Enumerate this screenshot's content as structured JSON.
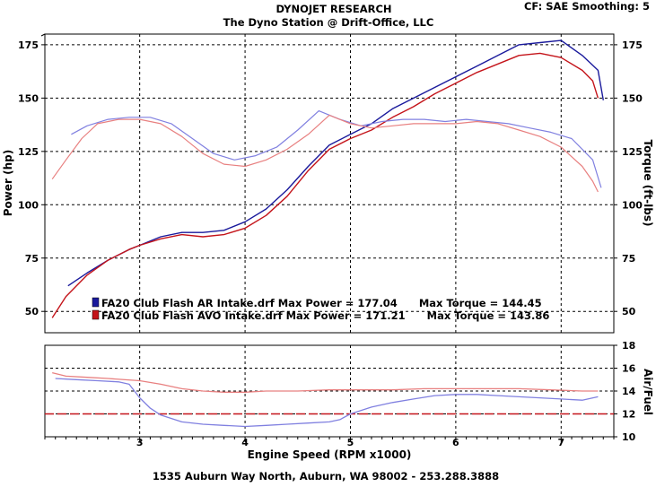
{
  "header": {
    "title": "DYNOJET RESEARCH",
    "subtitle": "The Dyno Station @ Drift-Office, LLC",
    "settings": "CF: SAE  Smoothing: 5"
  },
  "footer": {
    "address": "1535 Auburn Way North, Auburn, WA 98002 - 253.288.3888"
  },
  "colors": {
    "background": "#ffffff",
    "grid": "#000000",
    "series_ar": "#1a1a9c",
    "series_avo": "#c4141a",
    "series_ar_light": "#8080e0",
    "series_avo_light": "#e88080",
    "afr_ref": "#c4141a"
  },
  "legend": [
    {
      "text": "FA20 Club Flash AR Intake.drf Max Power = 177.04      Max Torque = 144.45",
      "color": "#1a1a9c"
    },
    {
      "text": "FA20 Club Flash AVO Intake.drf Max Power = 171.21      Max Torque = 143.86",
      "color": "#c4141a"
    }
  ],
  "chart_data": [
    {
      "type": "line",
      "xlabel": "Engine Speed (RPM x1000)",
      "ylabel": "Power (hp)",
      "y2label": "Torque (ft-lbs)",
      "xlim": [
        2.1,
        7.5
      ],
      "ylim": [
        40,
        180
      ],
      "y2lim": [
        40,
        180
      ],
      "yticks": [
        50,
        75,
        100,
        125,
        150,
        175
      ],
      "y2ticks": [
        50,
        75,
        100,
        125,
        150,
        175
      ],
      "vgrid": [
        3,
        4,
        5,
        6,
        7
      ],
      "grid": true,
      "legend_position": "bottom-left",
      "series": [
        {
          "name": "FA20 Club Flash AR Intake.drf",
          "quantity": "Power",
          "color_key": "series_ar",
          "points": [
            [
              2.32,
              62
            ],
            [
              2.5,
              68
            ],
            [
              2.7,
              74
            ],
            [
              2.9,
              79
            ],
            [
              3.0,
              81
            ],
            [
              3.2,
              85
            ],
            [
              3.4,
              87
            ],
            [
              3.6,
              87
            ],
            [
              3.8,
              88
            ],
            [
              4.0,
              92
            ],
            [
              4.2,
              98
            ],
            [
              4.4,
              107
            ],
            [
              4.6,
              118
            ],
            [
              4.8,
              128
            ],
            [
              5.0,
              133
            ],
            [
              5.2,
              138
            ],
            [
              5.4,
              145
            ],
            [
              5.6,
              150
            ],
            [
              5.8,
              155
            ],
            [
              6.0,
              160
            ],
            [
              6.2,
              165
            ],
            [
              6.4,
              170
            ],
            [
              6.6,
              175
            ],
            [
              6.8,
              176
            ],
            [
              7.0,
              177
            ],
            [
              7.2,
              170
            ],
            [
              7.35,
              163
            ],
            [
              7.4,
              149
            ]
          ]
        },
        {
          "name": "FA20 Club Flash AVO Intake.drf",
          "quantity": "Power",
          "color_key": "series_avo",
          "points": [
            [
              2.17,
              47
            ],
            [
              2.3,
              57
            ],
            [
              2.5,
              67
            ],
            [
              2.7,
              74
            ],
            [
              2.9,
              79
            ],
            [
              3.0,
              81
            ],
            [
              3.2,
              84
            ],
            [
              3.4,
              86
            ],
            [
              3.6,
              85
            ],
            [
              3.8,
              86
            ],
            [
              4.0,
              89
            ],
            [
              4.2,
              95
            ],
            [
              4.4,
              104
            ],
            [
              4.6,
              116
            ],
            [
              4.8,
              126
            ],
            [
              5.0,
              131
            ],
            [
              5.2,
              135
            ],
            [
              5.4,
              141
            ],
            [
              5.6,
              146
            ],
            [
              5.8,
              152
            ],
            [
              6.0,
              157
            ],
            [
              6.2,
              162
            ],
            [
              6.4,
              166
            ],
            [
              6.6,
              170
            ],
            [
              6.8,
              171
            ],
            [
              7.0,
              169
            ],
            [
              7.2,
              163
            ],
            [
              7.3,
              158
            ],
            [
              7.35,
              150
            ]
          ]
        },
        {
          "name": "FA20 Club Flash AR Intake.drf",
          "quantity": "Torque",
          "color_key": "series_ar_light",
          "points": [
            [
              2.35,
              133
            ],
            [
              2.5,
              137
            ],
            [
              2.7,
              140
            ],
            [
              2.9,
              141
            ],
            [
              3.1,
              141
            ],
            [
              3.3,
              138
            ],
            [
              3.5,
              131
            ],
            [
              3.7,
              124
            ],
            [
              3.9,
              121
            ],
            [
              4.1,
              123
            ],
            [
              4.3,
              127
            ],
            [
              4.5,
              135
            ],
            [
              4.7,
              144
            ],
            [
              4.9,
              140
            ],
            [
              5.1,
              137
            ],
            [
              5.3,
              139
            ],
            [
              5.5,
              140
            ],
            [
              5.7,
              140
            ],
            [
              5.9,
              139
            ],
            [
              6.1,
              140
            ],
            [
              6.3,
              139
            ],
            [
              6.5,
              138
            ],
            [
              6.7,
              136
            ],
            [
              6.9,
              134
            ],
            [
              7.1,
              131
            ],
            [
              7.3,
              121
            ],
            [
              7.38,
              108
            ]
          ]
        },
        {
          "name": "FA20 Club Flash AVO Intake.drf",
          "quantity": "Torque",
          "color_key": "series_avo_light",
          "points": [
            [
              2.17,
              112
            ],
            [
              2.3,
              121
            ],
            [
              2.45,
              131
            ],
            [
              2.6,
              138
            ],
            [
              2.8,
              140
            ],
            [
              3.0,
              140
            ],
            [
              3.2,
              138
            ],
            [
              3.4,
              132
            ],
            [
              3.6,
              124
            ],
            [
              3.8,
              119
            ],
            [
              4.0,
              118
            ],
            [
              4.2,
              121
            ],
            [
              4.4,
              126
            ],
            [
              4.6,
              133
            ],
            [
              4.8,
              142
            ],
            [
              5.0,
              138
            ],
            [
              5.2,
              136
            ],
            [
              5.4,
              137
            ],
            [
              5.6,
              138
            ],
            [
              5.8,
              138
            ],
            [
              6.0,
              138
            ],
            [
              6.2,
              139
            ],
            [
              6.4,
              138
            ],
            [
              6.6,
              135
            ],
            [
              6.8,
              132
            ],
            [
              7.0,
              127
            ],
            [
              7.2,
              118
            ],
            [
              7.3,
              111
            ],
            [
              7.35,
              106
            ]
          ]
        }
      ]
    },
    {
      "type": "line",
      "ylabel": "Air/Fuel",
      "xlim": [
        2.1,
        7.5
      ],
      "ylim": [
        10,
        18
      ],
      "yticks": [
        10,
        12,
        14,
        16,
        18
      ],
      "vgrid": [
        3,
        4,
        5,
        6,
        7
      ],
      "reference_line": 12,
      "grid": true,
      "series": [
        {
          "name": "FA20 Club Flash AR Intake.drf",
          "quantity": "Air/Fuel",
          "color_key": "series_ar_light",
          "points": [
            [
              2.2,
              15.1
            ],
            [
              2.4,
              15.0
            ],
            [
              2.6,
              14.9
            ],
            [
              2.8,
              14.8
            ],
            [
              2.9,
              14.6
            ],
            [
              3.0,
              13.4
            ],
            [
              3.1,
              12.5
            ],
            [
              3.2,
              11.9
            ],
            [
              3.4,
              11.3
            ],
            [
              3.6,
              11.1
            ],
            [
              3.8,
              11.0
            ],
            [
              4.0,
              10.9
            ],
            [
              4.2,
              11.0
            ],
            [
              4.4,
              11.1
            ],
            [
              4.6,
              11.2
            ],
            [
              4.8,
              11.3
            ],
            [
              4.9,
              11.5
            ],
            [
              5.0,
              12.0
            ],
            [
              5.2,
              12.6
            ],
            [
              5.4,
              13.0
            ],
            [
              5.6,
              13.3
            ],
            [
              5.8,
              13.6
            ],
            [
              6.0,
              13.7
            ],
            [
              6.2,
              13.7
            ],
            [
              6.4,
              13.6
            ],
            [
              6.6,
              13.5
            ],
            [
              6.8,
              13.4
            ],
            [
              7.0,
              13.3
            ],
            [
              7.2,
              13.2
            ],
            [
              7.35,
              13.5
            ]
          ]
        },
        {
          "name": "FA20 Club Flash AVO Intake.drf",
          "quantity": "Air/Fuel",
          "color_key": "series_avo_light",
          "points": [
            [
              2.17,
              15.6
            ],
            [
              2.3,
              15.3
            ],
            [
              2.5,
              15.2
            ],
            [
              2.7,
              15.1
            ],
            [
              3.0,
              14.9
            ],
            [
              3.2,
              14.6
            ],
            [
              3.4,
              14.2
            ],
            [
              3.6,
              14.0
            ],
            [
              3.8,
              13.9
            ],
            [
              4.0,
              13.9
            ],
            [
              4.2,
              14.0
            ],
            [
              4.5,
              14.0
            ],
            [
              4.8,
              14.1
            ],
            [
              5.1,
              14.1
            ],
            [
              5.4,
              14.1
            ],
            [
              5.7,
              14.2
            ],
            [
              6.0,
              14.2
            ],
            [
              6.3,
              14.2
            ],
            [
              6.6,
              14.2
            ],
            [
              6.9,
              14.1
            ],
            [
              7.2,
              14.0
            ],
            [
              7.35,
              14.0
            ]
          ]
        }
      ]
    }
  ]
}
